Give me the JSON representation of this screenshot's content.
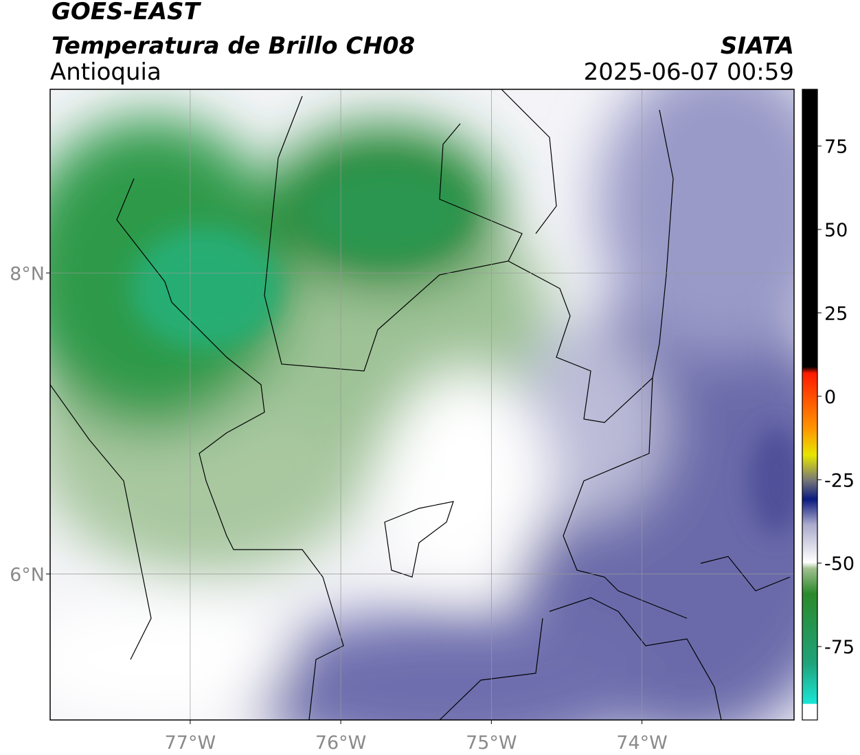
{
  "header": {
    "satellite": "GOES-EAST",
    "product": "Temperatura de Brillo CH08",
    "region": "Antioquia",
    "agency": "SIATA",
    "datetime": "2025-06-07 00:59"
  },
  "map": {
    "lon_range": [
      -77.93,
      -72.99
    ],
    "lat_range": [
      5.03,
      9.22
    ],
    "lon_ticks": [
      {
        "value": -77,
        "label": "77°W"
      },
      {
        "value": -76,
        "label": "76°W"
      },
      {
        "value": -75,
        "label": "75°W"
      },
      {
        "value": -74,
        "label": "74°W"
      }
    ],
    "lat_ticks": [
      {
        "value": 8,
        "label": "8°N"
      },
      {
        "value": 6,
        "label": "6°N"
      }
    ]
  },
  "colorbar": {
    "range": [
      -97,
      92
    ],
    "ticks": [
      75,
      50,
      25,
      0,
      -25,
      -50,
      -75
    ]
  }
}
